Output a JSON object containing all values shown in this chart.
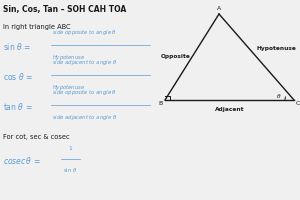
{
  "title": "Sin, Cos, Tan – SOH CAH TOA",
  "background_color": "#f0f0f0",
  "blue_color": "#5b9bd5",
  "black_color": "#1a1a1a",
  "tri_A": [
    0.73,
    0.93
  ],
  "tri_B": [
    0.55,
    0.5
  ],
  "tri_C": [
    0.98,
    0.5
  ]
}
